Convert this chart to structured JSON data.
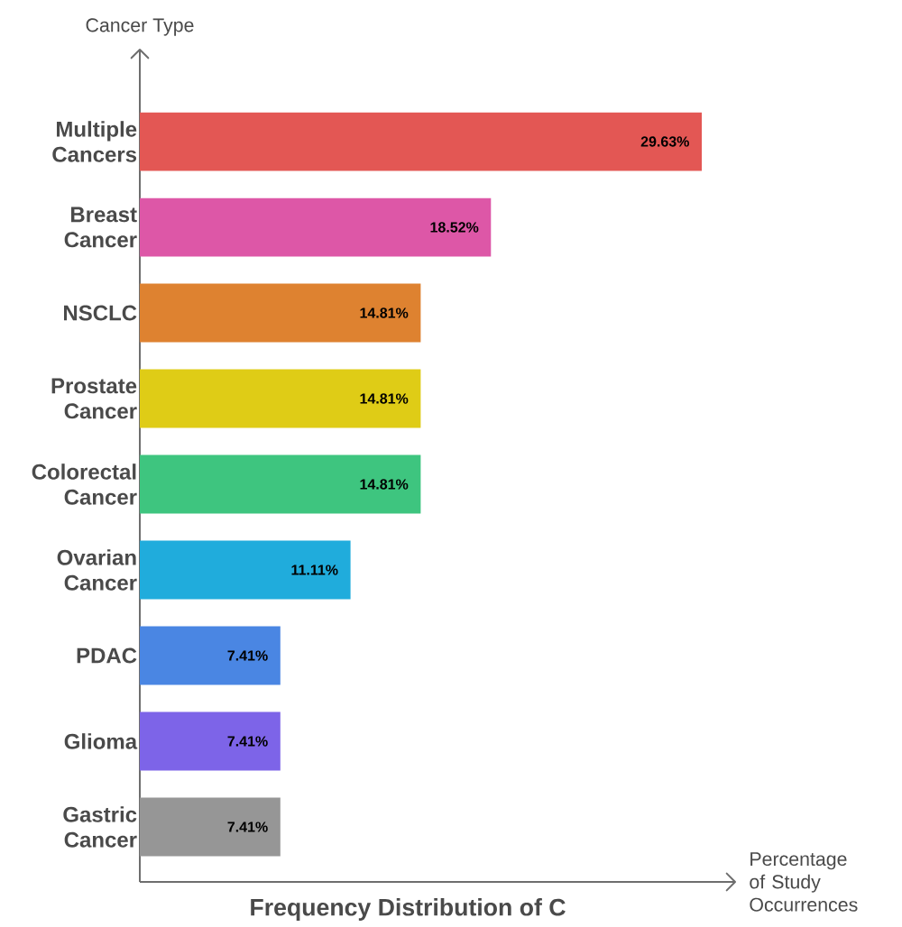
{
  "chart_data": {
    "type": "bar",
    "orientation": "horizontal",
    "title": "Frequency Distribution of C",
    "xlabel": "Percentage of Study Occurrences",
    "ylabel": "Cancer Type",
    "categories": [
      "Multiple Cancers",
      "Breast Cancer",
      "NSCLC",
      "Prostate Cancer",
      "Colorectal Cancer",
      "Ovarian Cancer",
      "PDAC",
      "Glioma",
      "Gastric Cancer"
    ],
    "values": [
      29.63,
      18.52,
      14.81,
      14.81,
      14.81,
      11.11,
      7.41,
      7.41,
      7.41
    ],
    "value_labels": [
      "29.63%",
      "18.52%",
      "14.81%",
      "14.81%",
      "14.81%",
      "11.11%",
      "7.41%",
      "7.41%",
      "7.41%"
    ],
    "colors": [
      "#e35754",
      "#dd57a7",
      "#de8230",
      "#dfcc16",
      "#3ec57f",
      "#20acdc",
      "#4a86e3",
      "#7d64e8",
      "#969696"
    ],
    "tick_labels": "y"
  }
}
